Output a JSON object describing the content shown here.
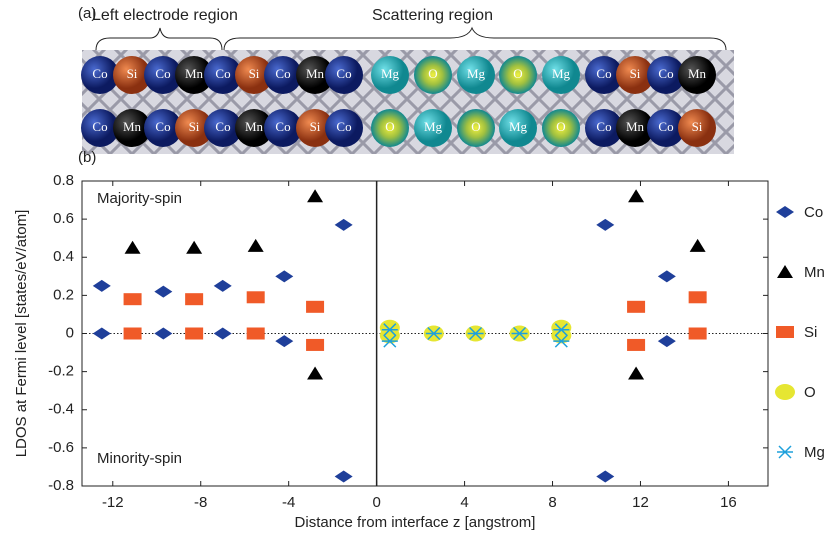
{
  "panel_a": {
    "label": "(a)",
    "left_region": "Left electrode region",
    "scattering_region": "Scattering region",
    "top_row": [
      "Co",
      "Si",
      "Co",
      "Mn",
      "Co",
      "Si",
      "Co",
      "Mn",
      "Co",
      "Mg",
      "O",
      "Mg",
      "O",
      "Mg",
      "Co",
      "Si",
      "Co",
      "Mn"
    ],
    "bottom_row": [
      "Co",
      "Mn",
      "Co",
      "Si",
      "Co",
      "Mn",
      "Co",
      "Si",
      "Co",
      "O",
      "Mg",
      "O",
      "Mg",
      "O",
      "Co",
      "Mn",
      "Co",
      "Si"
    ]
  },
  "chart_data": {
    "type": "scatter",
    "panel_label": "(b)",
    "xlabel": "Distance from interface z [angstrom]",
    "ylabel": "LDOS  at Fermi level [states/eV/atom]",
    "annotations": [
      "Majority-spin",
      "Minority-spin"
    ],
    "xlim": [
      -13.4,
      17.8
    ],
    "ylim": [
      -0.8,
      0.8
    ],
    "xticks": [
      -12,
      -8,
      -4,
      0,
      4,
      8,
      12,
      16
    ],
    "yticks": [
      -0.8,
      -0.6,
      -0.4,
      -0.2,
      0,
      0.2,
      0.4,
      0.6,
      0.8
    ],
    "grid": false,
    "legend": "right",
    "series": [
      {
        "name": "Co",
        "color": "#1f3f9a",
        "marker": "diamond",
        "x": [
          -12.5,
          -12.5,
          -9.7,
          -9.7,
          -7.0,
          -7.0,
          -4.2,
          -4.2,
          -1.5,
          -1.5,
          10.4,
          10.4,
          13.2,
          13.2
        ],
        "values": [
          0.25,
          0,
          0.22,
          0,
          0.25,
          0,
          0.3,
          -0.04,
          0.57,
          -0.75,
          0.57,
          -0.75,
          0.3,
          -0.04
        ]
      },
      {
        "name": "Mn",
        "color": "#000000",
        "marker": "triangle",
        "x": [
          -11.1,
          -8.3,
          -5.5,
          -2.8,
          -2.8,
          11.8,
          11.8,
          14.6
        ],
        "values": [
          0.45,
          0.45,
          0.46,
          0.72,
          -0.21,
          0.72,
          -0.21,
          0.46
        ]
      },
      {
        "name": "Si",
        "color": "#f05a28",
        "marker": "square",
        "x": [
          -11.1,
          -11.1,
          -8.3,
          -8.3,
          -5.5,
          -5.5,
          -2.8,
          -2.8,
          11.8,
          11.8,
          14.6,
          14.6
        ],
        "values": [
          0.18,
          0,
          0.18,
          0,
          0.19,
          0,
          0.14,
          -0.06,
          0.14,
          -0.06,
          0.19,
          0
        ]
      },
      {
        "name": "O",
        "color": "#e6e632",
        "marker": "ellipse",
        "x": [
          0.6,
          0.6,
          2.6,
          4.5,
          6.5,
          8.4,
          8.4
        ],
        "values": [
          0.03,
          -0.01,
          0,
          0,
          0,
          0.03,
          -0.01
        ]
      },
      {
        "name": "Mg",
        "color": "#1ea0dc",
        "marker": "star",
        "x": [
          0.6,
          0.6,
          2.6,
          4.5,
          6.5,
          8.4,
          8.4
        ],
        "values": [
          0.02,
          -0.04,
          0,
          0,
          0,
          0.02,
          -0.04
        ]
      }
    ]
  }
}
